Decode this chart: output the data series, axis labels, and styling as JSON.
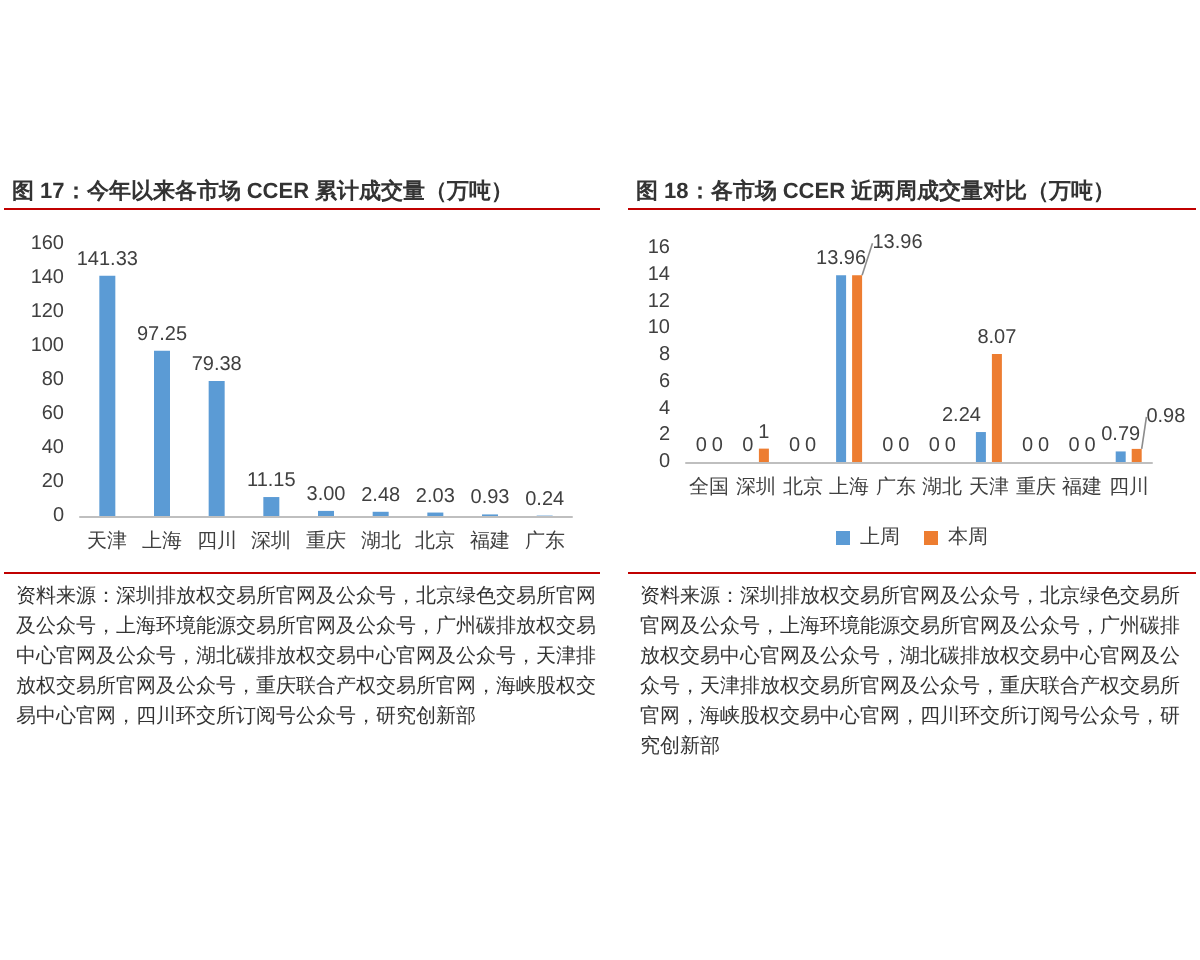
{
  "chart_data": [
    {
      "type": "bar",
      "title": "图 17：今年以来各市场 CCER 累计成交量（万吨）",
      "categories": [
        "天津",
        "上海",
        "四川",
        "深圳",
        "重庆",
        "湖北",
        "北京",
        "福建",
        "广东"
      ],
      "values": [
        141.33,
        97.25,
        79.38,
        11.15,
        3,
        2.48,
        2.03,
        0.93,
        0.24
      ],
      "value_labels": [
        "141.33",
        "97.25",
        "79.38",
        "11.15",
        "3.00",
        "2.48",
        "2.03",
        "0.93",
        "0.24"
      ],
      "color": "#5b9bd5",
      "ylim": [
        0,
        160
      ],
      "yticks": [
        0,
        20,
        40,
        60,
        80,
        100,
        120,
        140,
        160
      ],
      "annotations": [
        "资料来源：深圳排放权交易所官网及公众号，北京绿色交易所官网及公众号，上海环境能源交易所官网及公众号，广州碳排放权交易中心官网及公众号，湖北碳排放权交易中心官网及公众号，天津排放权交易所官网及公众号，重庆联合产权交易所官网，海峡股权交易中心官网，四川环交所订阅号公众号，研究创新部"
      ]
    },
    {
      "type": "bar",
      "title": "图 18：各市场 CCER 近两周成交量对比（万吨）",
      "categories": [
        "全国",
        "深圳",
        "北京",
        "上海",
        "广东",
        "湖北",
        "天津",
        "重庆",
        "福建",
        "四川"
      ],
      "series": [
        {
          "name": "上周",
          "color": "#5b9bd5",
          "values": [
            0,
            0,
            0,
            13.96,
            0,
            0,
            2.24,
            0,
            0,
            0.79
          ]
        },
        {
          "name": "本周",
          "color": "#ed7d31",
          "values": [
            0,
            1,
            0,
            13.96,
            0,
            0,
            8.07,
            0,
            0,
            0.98
          ]
        }
      ],
      "data_labels": true,
      "ylim": [
        0,
        16
      ],
      "yticks": [
        0,
        2,
        4,
        6,
        8,
        10,
        12,
        14,
        16
      ],
      "legend": "bottom",
      "annotations": [
        "资料来源：深圳排放权交易所官网及公众号，北京绿色交易所官网及公众号，上海环境能源交易所官网及公众号，广州碳排放权交易中心官网及公众号，湖北碳排放权交易中心官网及公众号，天津排放权交易所官网及公众号，重庆联合产权交易所官网，海峡股权交易中心官网，四川环交所订阅号公众号，研究创新部"
      ]
    }
  ]
}
